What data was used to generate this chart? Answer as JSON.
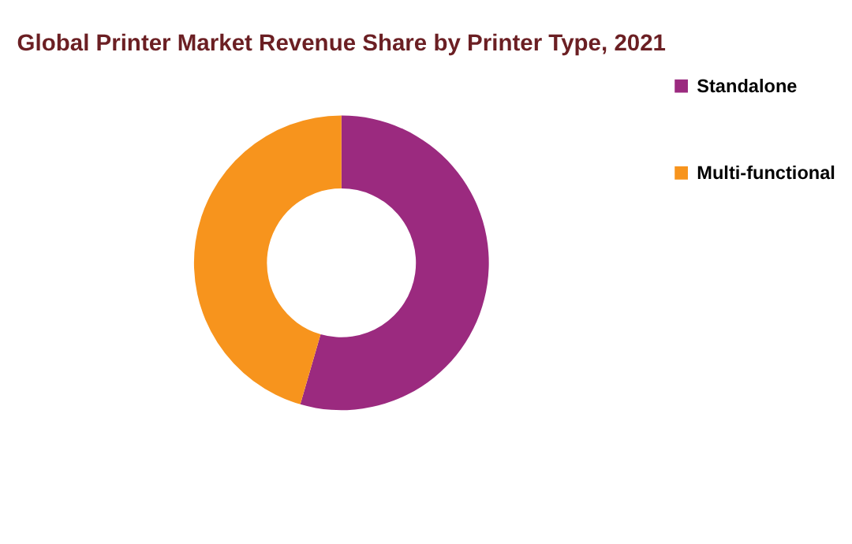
{
  "chart_data": {
    "type": "donut",
    "title": "Global Printer Market Revenue Share by Printer Type, 2021",
    "categories": [
      "Standalone",
      "Multi-functional"
    ],
    "values": [
      54.5,
      45.5
    ],
    "colors": [
      "#9b2a7f",
      "#f7941d"
    ],
    "legend": "right"
  }
}
